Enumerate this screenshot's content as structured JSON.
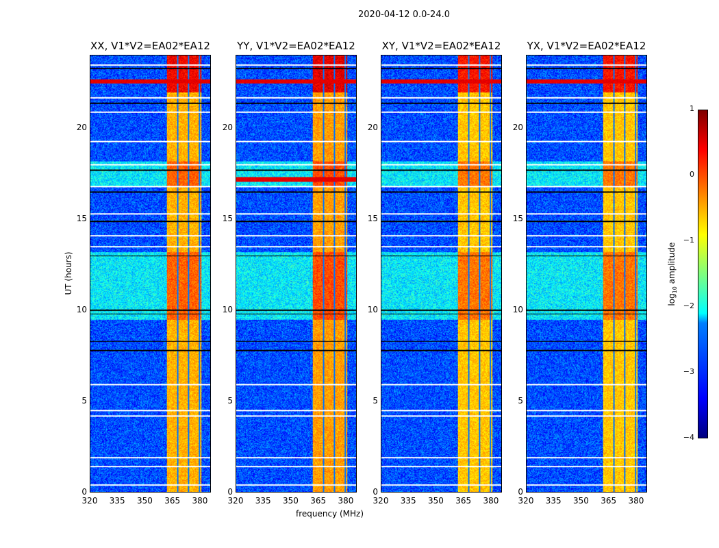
{
  "figure_title": "2020-04-12 0.0-24.0",
  "chart_data": {
    "type": "heatmap",
    "title": "2020-04-12 0.0-24.0",
    "xlabel": "frequency (MHz)",
    "ylabel": "UT (hours)",
    "xlim": [
      320,
      386
    ],
    "ylim": [
      0,
      24
    ],
    "xticks": [
      "320",
      "335",
      "350",
      "365",
      "380"
    ],
    "xtick_values": [
      320,
      335,
      350,
      365,
      380
    ],
    "yticks": [
      "0",
      "5",
      "10",
      "15",
      "20"
    ],
    "ytick_values": [
      0,
      5,
      10,
      15,
      20
    ],
    "panels": [
      {
        "title": "XX, V1*V2=EA02*EA12",
        "background_log10": -3.0,
        "rfi_band_mhz": [
          362,
          381
        ],
        "rfi_log10": -0.5,
        "bright_rows_hours": [
          22.6
        ]
      },
      {
        "title": "YY, V1*V2=EA02*EA12",
        "background_log10": -3.0,
        "rfi_band_mhz": [
          362,
          381
        ],
        "rfi_log10": -0.4,
        "bright_rows_hours": [
          22.6,
          17.2
        ]
      },
      {
        "title": "XY, V1*V2=EA02*EA12",
        "background_log10": -3.0,
        "rfi_band_mhz": [
          362,
          381
        ],
        "rfi_log10": -0.6,
        "bright_rows_hours": [
          22.6
        ]
      },
      {
        "title": "YX, V1*V2=EA02*EA12",
        "background_log10": -3.0,
        "rfi_band_mhz": [
          362,
          381
        ],
        "rfi_log10": -0.6,
        "bright_rows_hours": [
          22.6
        ]
      }
    ],
    "channel_gaps_mhz": [
      368,
      374,
      380
    ],
    "flagged_rows_hours": [
      0.4,
      1.4,
      1.9,
      4.2,
      4.5,
      5.9,
      13.5,
      14.1,
      15.3,
      16.8,
      18.0,
      19.3,
      20.9,
      21.7,
      23.5
    ],
    "dark_rows_hours": [
      7.8,
      8.3,
      9.8,
      10.0,
      13.0,
      14.9,
      16.5,
      17.7,
      21.4,
      23.3
    ],
    "elevated_hours": [
      [
        9.5,
        13.2
      ],
      [
        16.8,
        18.2
      ]
    ],
    "colorbar": {
      "label": "log10 amplitude",
      "label_base": "log",
      "label_sub": "10",
      "label_rest": " amplitude",
      "range": [
        -4,
        1
      ],
      "ticks": [
        "1",
        "0",
        "−1",
        "−2",
        "−3",
        "−4"
      ],
      "tick_values": [
        1,
        0,
        -1,
        -2,
        -3,
        -4
      ],
      "colormap": "jet"
    }
  }
}
